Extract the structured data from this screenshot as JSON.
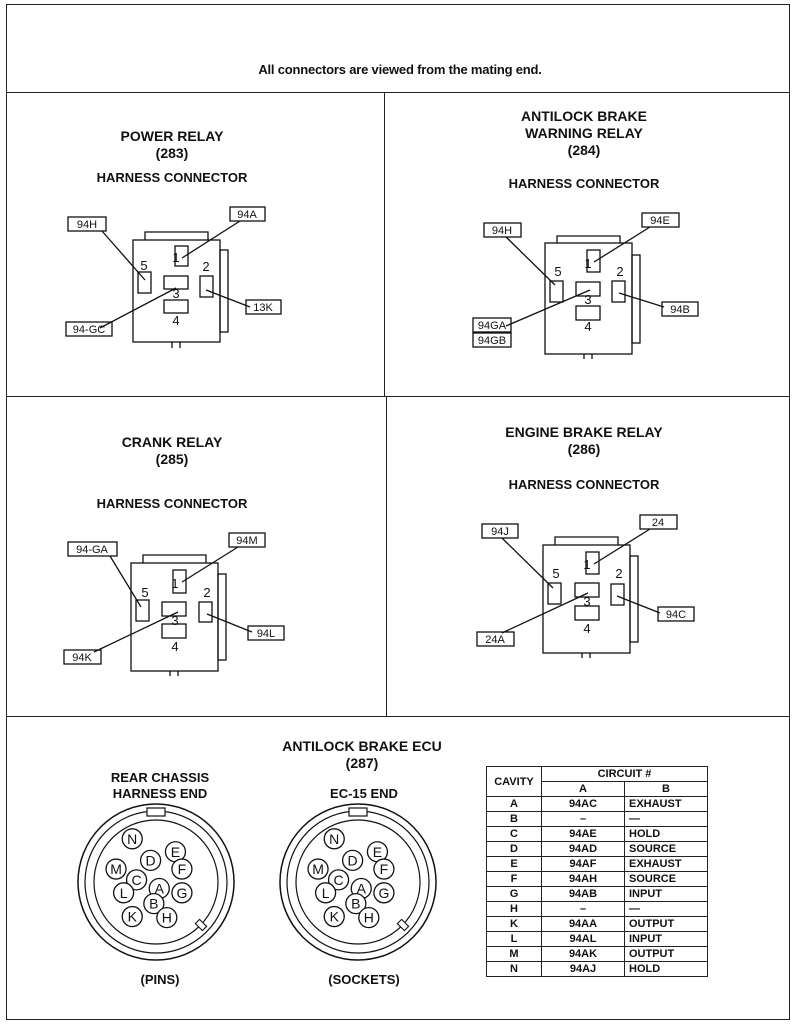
{
  "header": "All connectors are viewed from the mating end.",
  "panels": {
    "power_relay": {
      "title": "POWER RELAY",
      "number": "(283)",
      "subtitle": "HARNESS CONNECTOR",
      "pins": {
        "p1": "1",
        "p2": "2",
        "p3": "3",
        "p4": "4",
        "p5": "5"
      },
      "labels": {
        "a": "94H",
        "b": "94A",
        "c": "13K",
        "d": "94-GC"
      }
    },
    "antilock_warning_relay": {
      "title_line1": "ANTILOCK BRAKE",
      "title_line2": "WARNING RELAY",
      "number": "(284)",
      "subtitle": "HARNESS CONNECTOR",
      "pins": {
        "p1": "1",
        "p2": "2",
        "p3": "3",
        "p4": "4",
        "p5": "5"
      },
      "labels": {
        "a": "94H",
        "b": "94E",
        "c": "94B",
        "d": "94GA",
        "e": "94GB"
      }
    },
    "crank_relay": {
      "title": "CRANK RELAY",
      "number": "(285)",
      "subtitle": "HARNESS CONNECTOR",
      "pins": {
        "p1": "1",
        "p2": "2",
        "p3": "3",
        "p4": "4",
        "p5": "5"
      },
      "labels": {
        "a": "94-GA",
        "b": "94M",
        "c": "94L",
        "d": "94K"
      }
    },
    "engine_brake_relay": {
      "title": "ENGINE BRAKE RELAY",
      "number": "(286)",
      "subtitle": "HARNESS CONNECTOR",
      "pins": {
        "p1": "1",
        "p2": "2",
        "p3": "3",
        "p4": "4",
        "p5": "5"
      },
      "labels": {
        "a": "94J",
        "b": "24",
        "c": "94C",
        "d": "24A"
      }
    }
  },
  "ecu": {
    "title": "ANTILOCK BRAKE ECU",
    "number": "(287)",
    "left_caption_line1": "REAR CHASSIS",
    "left_caption_line2": "HARNESS END",
    "left_bottom": "(PINS)",
    "right_caption": "EC-15 END",
    "right_bottom": "(SOCKETS)",
    "cavities": [
      "N",
      "D",
      "E",
      "M",
      "C",
      "F",
      "L",
      "A",
      "G",
      "K",
      "B",
      "H"
    ]
  },
  "table": {
    "h_cavity": "CAVITY",
    "h_circuit": "CIRCUIT #",
    "h_a": "A",
    "h_b": "B",
    "rows": [
      {
        "cav": "A",
        "a": "94AC",
        "b": "EXHAUST"
      },
      {
        "cav": "B",
        "a": "–",
        "b": "—"
      },
      {
        "cav": "C",
        "a": "94AE",
        "b": "HOLD"
      },
      {
        "cav": "D",
        "a": "94AD",
        "b": "SOURCE"
      },
      {
        "cav": "E",
        "a": "94AF",
        "b": "EXHAUST"
      },
      {
        "cav": "F",
        "a": "94AH",
        "b": "SOURCE"
      },
      {
        "cav": "G",
        "a": "94AB",
        "b": "INPUT"
      },
      {
        "cav": "H",
        "a": "–",
        "b": "—"
      },
      {
        "cav": "K",
        "a": "94AA",
        "b": "OUTPUT"
      },
      {
        "cav": "L",
        "a": "94AL",
        "b": "INPUT"
      },
      {
        "cav": "M",
        "a": "94AK",
        "b": "OUTPUT"
      },
      {
        "cav": "N",
        "a": "94AJ",
        "b": "HOLD"
      }
    ]
  }
}
